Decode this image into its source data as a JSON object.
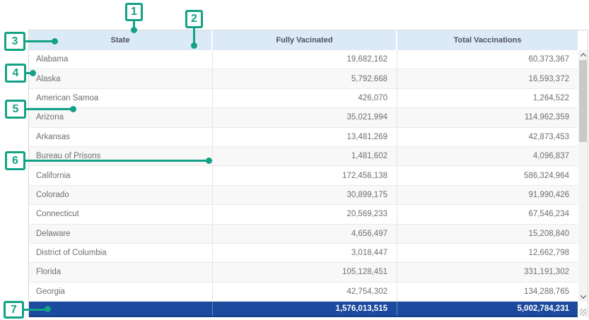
{
  "colors": {
    "annotation_teal": "#13A286",
    "header_bg": "#DCEAF7",
    "header_text": "#4D5259",
    "body_text": "#6E6E6E",
    "alt_row_bg": "#F8F8F8",
    "total_row_bg": "#1B4A9E",
    "total_row_text": "#FFFFFF"
  },
  "icons": {
    "scroll_up": "chevron-up",
    "scroll_down": "chevron-down",
    "corner": "resize-grip"
  },
  "callouts": [
    {
      "number": "1"
    },
    {
      "number": "2"
    },
    {
      "number": "3"
    },
    {
      "number": "4"
    },
    {
      "number": "5"
    },
    {
      "number": "6"
    },
    {
      "number": "7"
    }
  ],
  "table": {
    "columns": [
      {
        "label": "State"
      },
      {
        "label": "Fully Vacinated"
      },
      {
        "label": "Total Vaccinations"
      }
    ],
    "rows": [
      [
        "Alabama",
        "19,682,162",
        "60,373,367"
      ],
      [
        "Alaska",
        "5,792,668",
        "16,593,372"
      ],
      [
        "American Samoa",
        "426,070",
        "1,264,522"
      ],
      [
        "Arizona",
        "35,021,994",
        "114,962,359"
      ],
      [
        "Arkansas",
        "13,481,269",
        "42,873,453"
      ],
      [
        "Bureau of Prisons",
        "1,481,602",
        "4,096,837"
      ],
      [
        "California",
        "172,456,138",
        "586,324,964"
      ],
      [
        "Colorado",
        "30,899,175",
        "91,990,426"
      ],
      [
        "Connecticut",
        "20,569,233",
        "67,546,234"
      ],
      [
        "Delaware",
        "4,656,497",
        "15,208,840"
      ],
      [
        "District of Columbia",
        "3,018,447",
        "12,662,798"
      ],
      [
        "Florida",
        "105,128,451",
        "331,191,302"
      ],
      [
        "Georgia",
        "42,754,302",
        "134,288,765"
      ]
    ],
    "totals": {
      "fully_vaccinated": "1,576,013,515",
      "total_vaccinations": "5,002,784,231"
    }
  }
}
